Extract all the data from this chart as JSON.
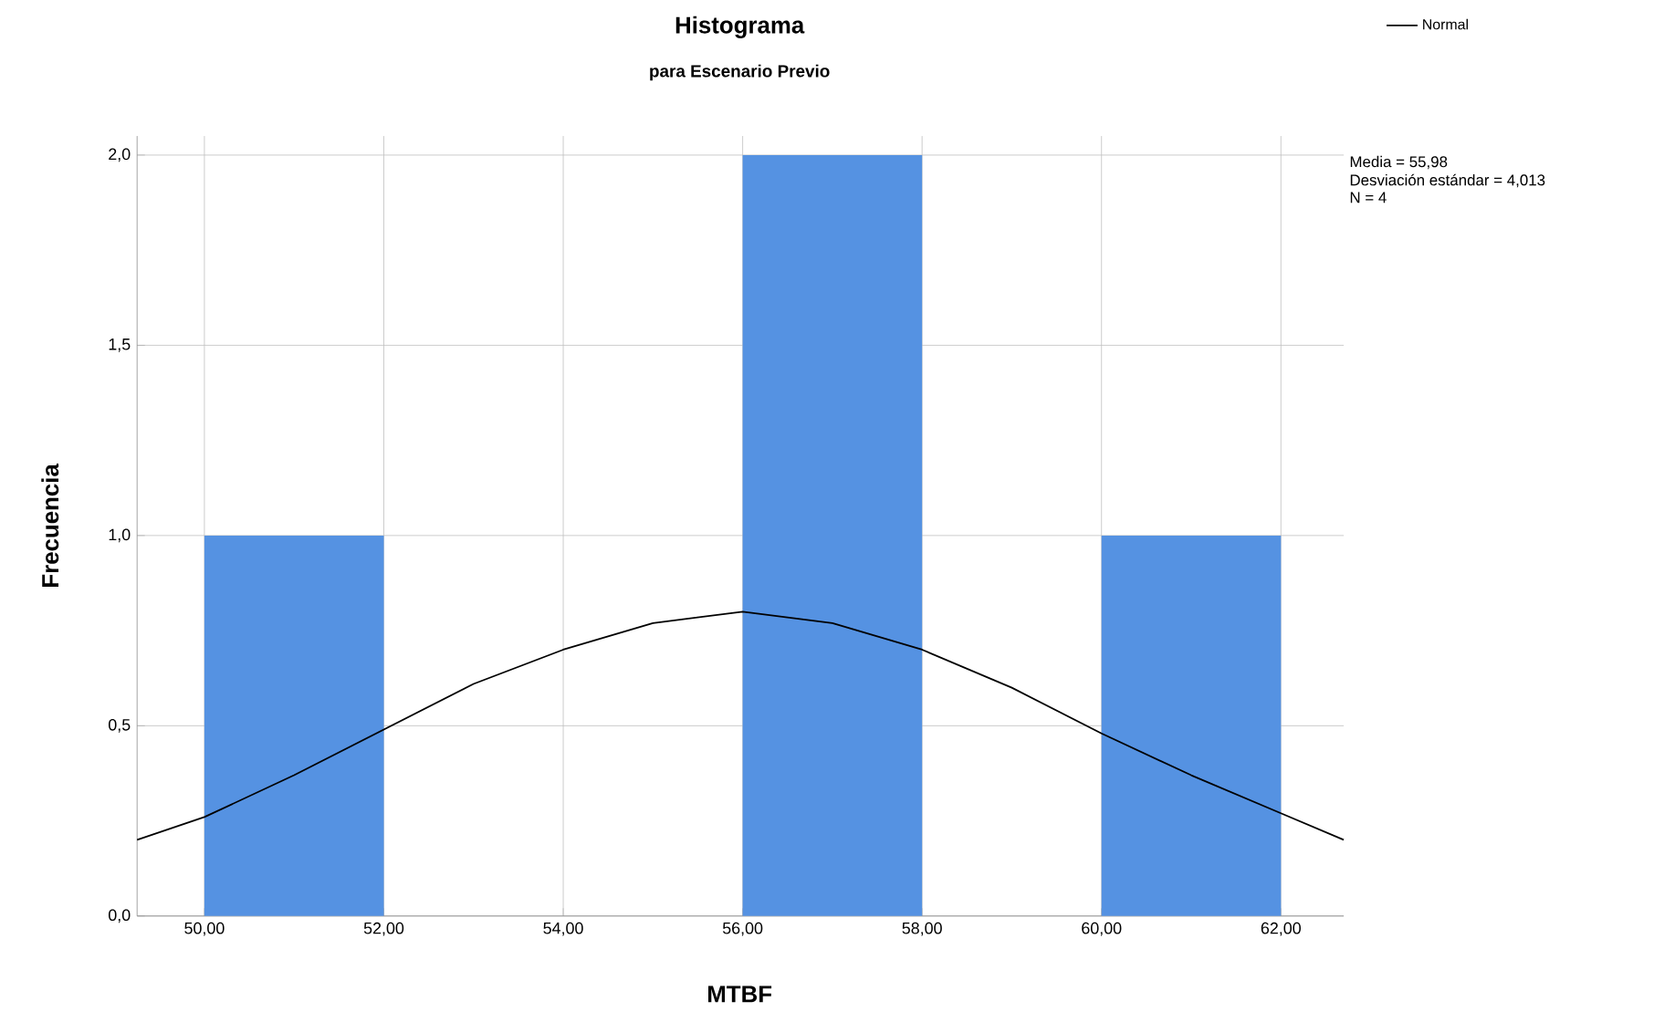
{
  "chart_data": {
    "type": "histogram",
    "title": "Histograma",
    "subtitle": "para Escenario Previo",
    "xlabel": "MTBF",
    "ylabel": "Frecuencia",
    "bins": [
      50,
      52,
      54,
      56,
      58,
      60,
      62
    ],
    "values": [
      1,
      0,
      0,
      2,
      0,
      1
    ],
    "color": "#5592e2",
    "series": [
      {
        "type": "line",
        "name": "Normal",
        "color": "#000000",
        "x": [
          49.25,
          50,
          51,
          52,
          53,
          54,
          55,
          56,
          57,
          58,
          59,
          60,
          61,
          62,
          62.7
        ],
        "values": [
          0.2,
          0.26,
          0.37,
          0.49,
          0.61,
          0.7,
          0.77,
          0.8,
          0.77,
          0.7,
          0.6,
          0.48,
          0.37,
          0.27,
          0.2
        ]
      }
    ],
    "xlim": [
      49.25,
      62.7
    ],
    "ylim": [
      0,
      2.05
    ],
    "xticks": [
      {
        "value": 50,
        "label": "50,00"
      },
      {
        "value": 52,
        "label": "52,00"
      },
      {
        "value": 54,
        "label": "54,00"
      },
      {
        "value": 56,
        "label": "56,00"
      },
      {
        "value": 58,
        "label": "58,00"
      },
      {
        "value": 60,
        "label": "60,00"
      },
      {
        "value": 62,
        "label": "62,00"
      }
    ],
    "yticks": [
      {
        "value": 0,
        "label": "0,0"
      },
      {
        "value": 0.5,
        "label": "0,5"
      },
      {
        "value": 1,
        "label": "1,0"
      },
      {
        "value": 1.5,
        "label": "1,5"
      },
      {
        "value": 2,
        "label": "2,0"
      }
    ],
    "annotations": [
      "Media = 55,98",
      "Desviación estándar = 4,013",
      "N = 4"
    ],
    "grid": true,
    "legend": "top right"
  }
}
